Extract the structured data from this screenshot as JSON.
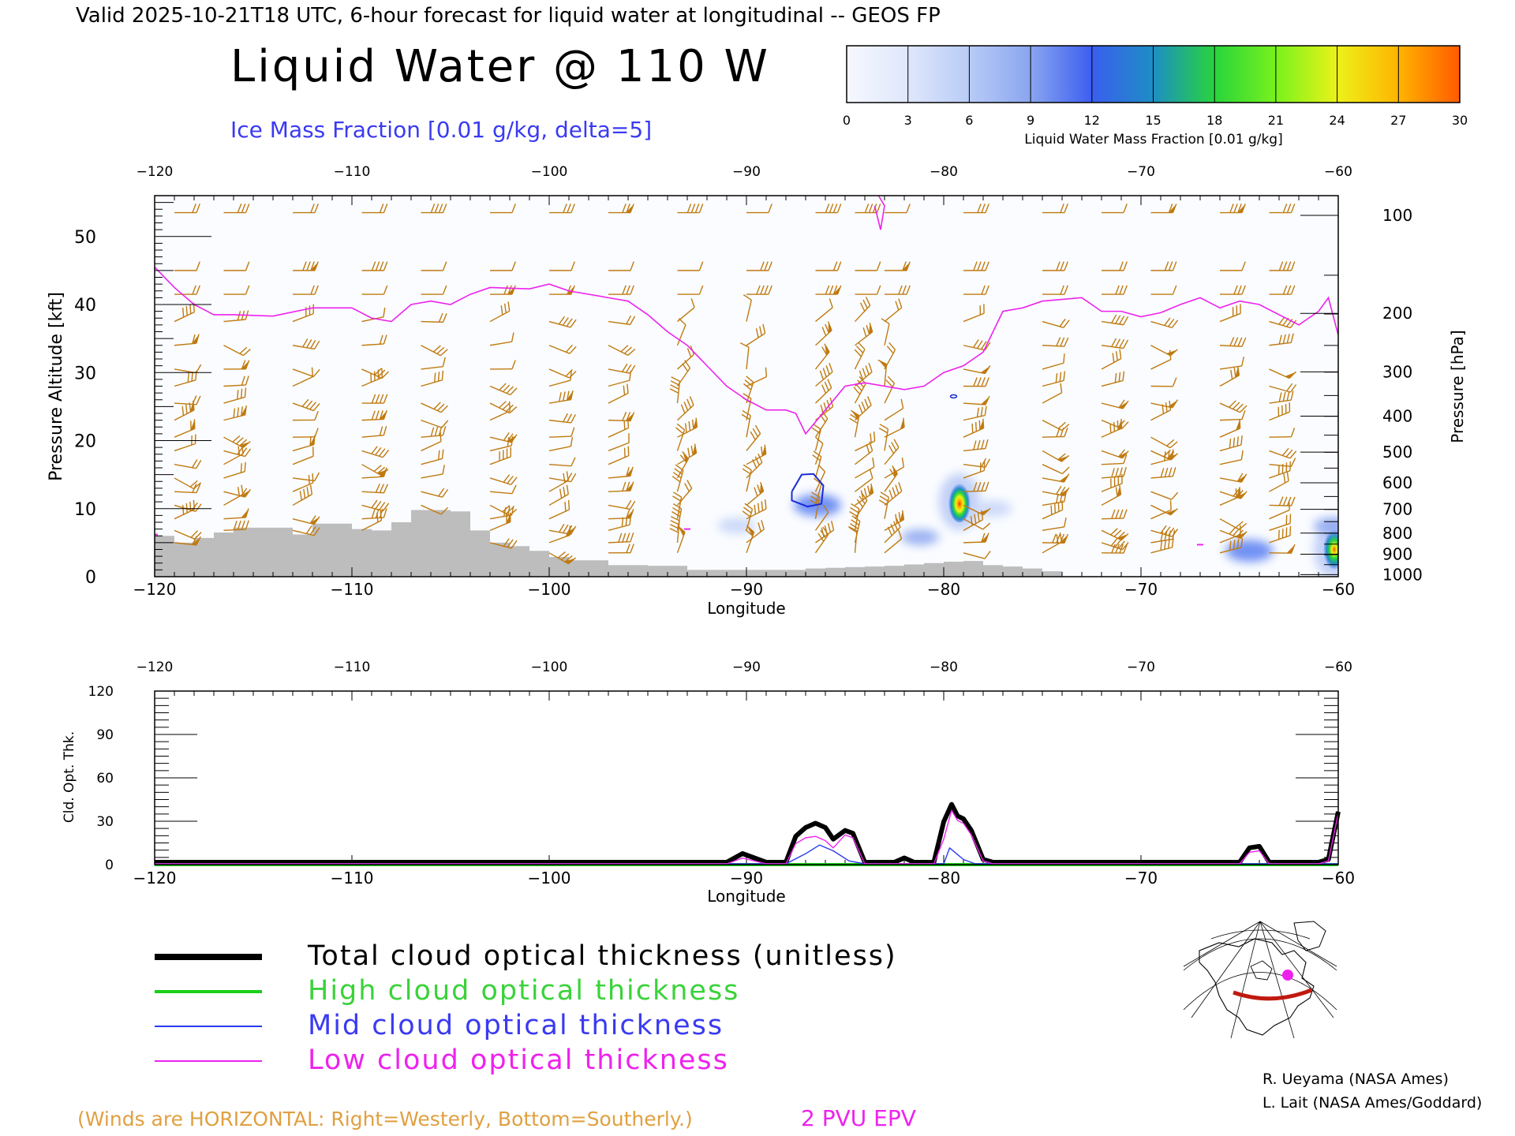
{
  "header": {
    "valid_line": "Valid 2025-10-21T18 UTC, 6-hour forecast for liquid water at longitudinal -- GEOS FP",
    "main_title": "Liquid Water @ 110 W",
    "ice_subtitle": "Ice Mass Fraction [0.01 g/kg, delta=5]"
  },
  "colorbar": {
    "ticks": [
      "0",
      "3",
      "6",
      "9",
      "12",
      "15",
      "18",
      "21",
      "24",
      "27",
      "30"
    ],
    "label": "Liquid Water Mass Fraction [0.01 g/kg]",
    "colors": [
      "#f6f8ff",
      "#dfe7fb",
      "#b8cbf6",
      "#8aa5f0",
      "#3b5ef0",
      "#1d8ec4",
      "#28d43c",
      "#78f21c",
      "#ecf21a",
      "#ffb400",
      "#ff5a00"
    ]
  },
  "colors": {
    "epv": "#ee22ee",
    "barb": "#c07a10",
    "topo": "#bdbdbd",
    "ice": "#1b2bd6",
    "total": "#000000",
    "high": "#18d018",
    "mid": "#2a3af0",
    "low": "#ee22ee"
  },
  "legend": {
    "total": "Total cloud optical thickness (unitless)",
    "high": "High cloud optical thickness",
    "mid": "Mid cloud optical thickness",
    "low": "Low cloud optical thickness"
  },
  "footer": {
    "winds": "(Winds are HORIZONTAL: Right=Westerly, Bottom=Southerly.)",
    "epv": "2 PVU EPV",
    "credit1": "R. Ueyama (NASA Ames)",
    "credit2": "L. Lait (NASA Ames/Goddard)"
  },
  "chart_data": [
    {
      "type": "area",
      "xlabel": "Longitude",
      "ylabel": "Pressure Altitude [kft]",
      "ylabel_right": "Pressure [hPa]",
      "xlim": [
        -120,
        -60
      ],
      "ylim": [
        0,
        56
      ],
      "x_ticks": [
        "-120",
        "-110",
        "-100",
        "-90",
        "-80",
        "-70",
        "-60"
      ],
      "top_ticks": [
        "-120",
        "-110",
        "-100",
        "-90",
        "-80",
        "-70",
        "-60"
      ],
      "y_ticks": [
        "0",
        "10",
        "20",
        "30",
        "40",
        "50"
      ],
      "pressure_ticks": [
        {
          "hpa": "100",
          "kft": 53.1
        },
        {
          "hpa": "200",
          "kft": 38.7
        },
        {
          "hpa": "300",
          "kft": 30.1
        },
        {
          "hpa": "400",
          "kft": 23.6
        },
        {
          "hpa": "500",
          "kft": 18.3
        },
        {
          "hpa": "600",
          "kft": 13.8
        },
        {
          "hpa": "700",
          "kft": 9.9
        },
        {
          "hpa": "800",
          "kft": 6.4
        },
        {
          "hpa": "900",
          "kft": 3.3
        },
        {
          "hpa": "1000",
          "kft": 0.3
        }
      ],
      "epv_2pvu_kft": [
        [
          -120,
          45.5
        ],
        [
          -119,
          42.5
        ],
        [
          -118,
          40
        ],
        [
          -117,
          38.5
        ],
        [
          -116,
          38.5
        ],
        [
          -114,
          38.3
        ],
        [
          -112,
          39.5
        ],
        [
          -110,
          39.5
        ],
        [
          -109,
          38
        ],
        [
          -108,
          37.5
        ],
        [
          -107,
          40
        ],
        [
          -106,
          40.5
        ],
        [
          -105,
          40
        ],
        [
          -104,
          41.5
        ],
        [
          -103,
          42.5
        ],
        [
          -101,
          42.3
        ],
        [
          -100,
          43
        ],
        [
          -99,
          42
        ],
        [
          -97,
          41
        ],
        [
          -96,
          40.5
        ],
        [
          -95,
          38.5
        ],
        [
          -94,
          36
        ],
        [
          -93,
          34
        ],
        [
          -92,
          31
        ],
        [
          -91,
          28
        ],
        [
          -90,
          26
        ],
        [
          -89,
          24.5
        ],
        [
          -88,
          24.5
        ],
        [
          -87.5,
          24
        ],
        [
          -87,
          21
        ],
        [
          -86,
          24.5
        ],
        [
          -85,
          28
        ],
        [
          -84,
          28.5
        ],
        [
          -82,
          27.5
        ],
        [
          -81,
          28
        ],
        [
          -80,
          30
        ],
        [
          -79,
          31
        ],
        [
          -78,
          33
        ],
        [
          -77,
          39
        ],
        [
          -76,
          39.5
        ],
        [
          -75,
          40.5
        ],
        [
          -73,
          41
        ],
        [
          -72,
          39
        ],
        [
          -71,
          39
        ],
        [
          -70,
          38.2
        ],
        [
          -69,
          38.8
        ],
        [
          -68,
          40
        ],
        [
          -67,
          41
        ],
        [
          -66,
          39.5
        ],
        [
          -65,
          40.5
        ],
        [
          -64,
          40
        ],
        [
          -62,
          37
        ],
        [
          -61,
          39
        ],
        [
          -60.5,
          41
        ],
        [
          -60,
          35.5
        ]
      ],
      "topography_kft": [
        [
          -120,
          6
        ],
        [
          -119,
          5
        ],
        [
          -118,
          5.7
        ],
        [
          -117,
          6.5
        ],
        [
          -116,
          7.2
        ],
        [
          -115,
          7.2
        ],
        [
          -114,
          7.2
        ],
        [
          -113,
          6.2
        ],
        [
          -112,
          7.8
        ],
        [
          -111,
          7.8
        ],
        [
          -110,
          7
        ],
        [
          -109,
          6.8
        ],
        [
          -108,
          8
        ],
        [
          -107,
          9.8
        ],
        [
          -106,
          9.8
        ],
        [
          -105,
          9.6
        ],
        [
          -104,
          6.8
        ],
        [
          -103,
          5
        ],
        [
          -102,
          4.5
        ],
        [
          -101,
          3.8
        ],
        [
          -100,
          2.9
        ],
        [
          -99,
          2.4
        ],
        [
          -98,
          2.4
        ],
        [
          -97,
          1.7
        ],
        [
          -96,
          1.7
        ],
        [
          -95,
          1.6
        ],
        [
          -94,
          1.6
        ],
        [
          -93,
          1
        ],
        [
          -92,
          1
        ],
        [
          -91,
          1
        ],
        [
          -90,
          1
        ],
        [
          -89,
          1
        ],
        [
          -88,
          1
        ],
        [
          -87,
          1.2
        ],
        [
          -86,
          1.3
        ],
        [
          -85,
          1.4
        ],
        [
          -84,
          1.5
        ],
        [
          -83,
          1.6
        ],
        [
          -82,
          1.8
        ],
        [
          -81,
          2
        ],
        [
          -80,
          2.2
        ],
        [
          -79,
          2.3
        ],
        [
          -78,
          1.7
        ],
        [
          -77,
          1.5
        ],
        [
          -76,
          1.2
        ],
        [
          -75,
          0.8
        ],
        [
          -74,
          0
        ]
      ],
      "liquid_water_blobs": [
        {
          "lon": -79.2,
          "kft": 11,
          "value": 20
        },
        {
          "lon": -60.2,
          "kft": 4,
          "value": 16
        },
        {
          "lon": -86.4,
          "kft": 10.5,
          "value": 8
        },
        {
          "lon": -64.5,
          "kft": 3.8,
          "value": 8
        },
        {
          "lon": -81.2,
          "kft": 5.8,
          "value": 7
        },
        {
          "lon": -77.5,
          "kft": 10,
          "value": 3
        },
        {
          "lon": -90.5,
          "kft": 7.5,
          "value": 3
        },
        {
          "lon": -60.3,
          "kft": 7.5,
          "value": 5
        }
      ],
      "ice_contour_kft": [
        [
          -87.7,
          12.5
        ],
        [
          -87.2,
          15
        ],
        [
          -86.6,
          15.1
        ],
        [
          -86.1,
          13.4
        ],
        [
          -86.2,
          10.7
        ],
        [
          -86.9,
          10.3
        ],
        [
          -87.7,
          11.2
        ],
        [
          -87.7,
          12.5
        ]
      ],
      "wind_barbs_lon": [
        -119,
        -116.5,
        -113,
        -109.5,
        -106.5,
        -103,
        -100,
        -97,
        -93.5,
        -90,
        -86.5,
        -84.5,
        -83,
        -79,
        -75,
        -72,
        -69.5,
        -66,
        -63.5
      ]
    },
    {
      "type": "line",
      "xlabel": "Longitude",
      "ylabel": "Cld. Opt. Thk.",
      "xlim": [
        -120,
        -60
      ],
      "ylim": [
        0,
        120
      ],
      "x_ticks": [
        "-120",
        "-110",
        "-100",
        "-90",
        "-80",
        "-70",
        "-60"
      ],
      "top_ticks": [
        "-120",
        "-110",
        "-100",
        "-90",
        "-80",
        "-70",
        "-60"
      ],
      "y_ticks": [
        "0",
        "30",
        "60",
        "90",
        "120"
      ],
      "series": [
        {
          "name": "Total cloud optical thickness (unitless)",
          "points": [
            [
              -120,
              0
            ],
            [
              -91,
              0
            ],
            [
              -90.2,
              6
            ],
            [
              -89,
              0
            ],
            [
              -88,
              0
            ],
            [
              -87.5,
              18
            ],
            [
              -87,
              24
            ],
            [
              -86.5,
              27
            ],
            [
              -86,
              24
            ],
            [
              -85.6,
              16
            ],
            [
              -85,
              22
            ],
            [
              -84.6,
              20
            ],
            [
              -84,
              0
            ],
            [
              -82.5,
              0
            ],
            [
              -82,
              3
            ],
            [
              -81.5,
              0
            ],
            [
              -80.5,
              0
            ],
            [
              -80,
              28
            ],
            [
              -79.6,
              40
            ],
            [
              -79.3,
              32
            ],
            [
              -79,
              30
            ],
            [
              -78.6,
              22
            ],
            [
              -78,
              2
            ],
            [
              -77.5,
              0
            ],
            [
              -65,
              0
            ],
            [
              -64.5,
              10
            ],
            [
              -64,
              11
            ],
            [
              -63.5,
              0
            ],
            [
              -61,
              0
            ],
            [
              -60.5,
              2
            ],
            [
              -60,
              35
            ]
          ]
        },
        {
          "name": "High cloud optical thickness",
          "points": [
            [
              -120,
              0
            ],
            [
              -60,
              0
            ]
          ]
        },
        {
          "name": "Mid cloud optical thickness",
          "points": [
            [
              -120,
              0
            ],
            [
              -88,
              0
            ],
            [
              -87,
              7
            ],
            [
              -86.3,
              13
            ],
            [
              -85.6,
              9
            ],
            [
              -84.8,
              2
            ],
            [
              -84,
              0
            ],
            [
              -80,
              0
            ],
            [
              -79.7,
              11
            ],
            [
              -79,
              3
            ],
            [
              -78.4,
              0
            ],
            [
              -60,
              0
            ]
          ]
        },
        {
          "name": "Low cloud optical thickness",
          "points": [
            [
              -120,
              0
            ],
            [
              -91,
              0
            ],
            [
              -90.2,
              4
            ],
            [
              -89,
              0
            ],
            [
              -88,
              0
            ],
            [
              -87.5,
              14
            ],
            [
              -87,
              18
            ],
            [
              -86.5,
              19
            ],
            [
              -86,
              16
            ],
            [
              -85.6,
              11
            ],
            [
              -85,
              20
            ],
            [
              -84.6,
              18
            ],
            [
              -84,
              0
            ],
            [
              -80.5,
              0
            ],
            [
              -80,
              17
            ],
            [
              -79.6,
              37
            ],
            [
              -79.3,
              30
            ],
            [
              -79,
              28
            ],
            [
              -78.6,
              20
            ],
            [
              -78,
              2
            ],
            [
              -77.5,
              0
            ],
            [
              -65,
              0
            ],
            [
              -64.5,
              8
            ],
            [
              -64,
              9
            ],
            [
              -63.5,
              0
            ],
            [
              -61,
              0
            ],
            [
              -60.5,
              2
            ],
            [
              -60,
              35
            ]
          ]
        }
      ]
    }
  ]
}
